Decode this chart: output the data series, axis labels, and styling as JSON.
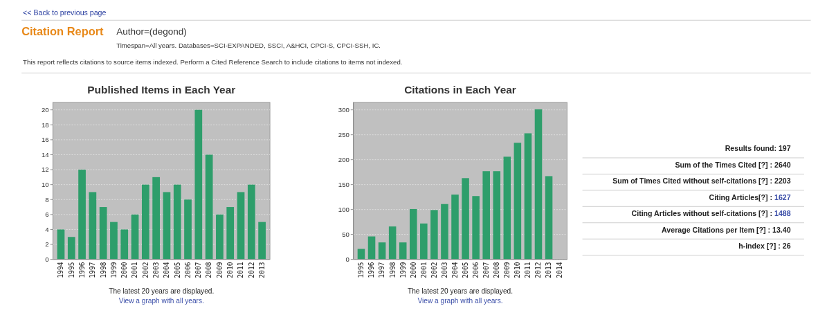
{
  "chart_data": [
    {
      "type": "other",
      "title": "Citation Report",
      "subtitle": "Author=(degond)",
      "annotations": [
        "<< Back to previous page",
        "Timespan=All years. Databases=SCI-EXPANDED, SSCI, A&HCI, CPCI-S, CPCI-SSH, IC.",
        "This report reflects citations to source items indexed. Perform a Cited Reference Search to include citations to items not indexed."
      ]
    },
    {
      "type": "bar",
      "title": "Published Items in Each Year",
      "categories": [
        "1994",
        "1995",
        "1996",
        "1997",
        "1998",
        "1999",
        "2000",
        "2001",
        "2002",
        "2003",
        "2004",
        "2005",
        "2006",
        "2007",
        "2008",
        "2009",
        "2010",
        "2011",
        "2012",
        "2013"
      ],
      "values": [
        4,
        3,
        12,
        9,
        7,
        5,
        4,
        6,
        10,
        11,
        9,
        10,
        8,
        20,
        14,
        6,
        7,
        9,
        10,
        5
      ],
      "color": "#2e9e6b",
      "ylim": [
        0,
        21
      ],
      "yticks": [
        0,
        2,
        4,
        6,
        8,
        10,
        12,
        14,
        16,
        18,
        20
      ],
      "grid": "y",
      "annotations": [
        "The latest 20 years are displayed.",
        "View a graph with all years."
      ]
    },
    {
      "type": "bar",
      "title": "Citations in Each Year",
      "categories": [
        "1995",
        "1996",
        "1997",
        "1998",
        "1999",
        "2000",
        "2001",
        "2002",
        "2003",
        "2004",
        "2005",
        "2006",
        "2007",
        "2008",
        "2009",
        "2010",
        "2011",
        "2012",
        "2013",
        "2014"
      ],
      "values": [
        21,
        46,
        34,
        66,
        34,
        101,
        72,
        99,
        111,
        130,
        163,
        127,
        177,
        177,
        206,
        234,
        253,
        301,
        167,
        0
      ],
      "color": "#2e9e6b",
      "ylim": [
        0,
        315
      ],
      "yticks": [
        0,
        50,
        100,
        150,
        200,
        250,
        300
      ],
      "grid": "y",
      "annotations": [
        "The latest 20 years are displayed.",
        "View a graph with all years."
      ]
    },
    {
      "type": "other",
      "annotations": [
        "Results found: 197",
        "Sum of the Times Cited [?] : 2640",
        "Sum of Times Cited without self-citations [?] : 2203",
        "Citing Articles[?] : 1627",
        "Citing Articles without self-citations [?] : 1488",
        "Average Citations per Item [?] : 13.40",
        "h-index [?] : 26"
      ],
      "colors": [
        "#222222",
        "#222222",
        "#222222",
        "#3b4ea8",
        "#3b4ea8",
        "#222222",
        "#222222"
      ]
    }
  ]
}
